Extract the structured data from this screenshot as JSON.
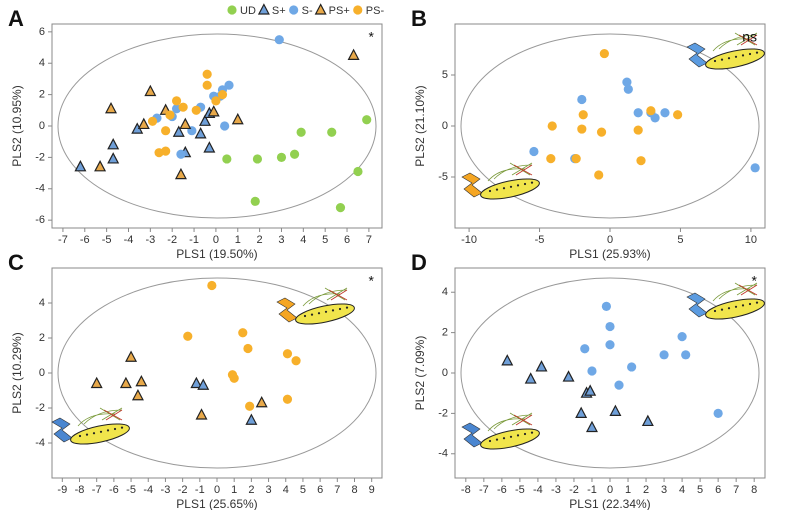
{
  "chart_data": [
    {
      "type": "scatter",
      "panel": "A",
      "xlabel": "PLS1 (19.50%)",
      "ylabel": "PLS2 (10.95%)",
      "annotation": "*",
      "legend": "top",
      "xlim": [
        -7.5,
        7.6
      ],
      "ylim": [
        -6.5,
        6.5
      ],
      "xticks": [
        -7,
        -6,
        -5,
        -4,
        -3,
        -2,
        -1,
        0,
        1,
        2,
        3,
        4,
        5,
        6,
        7
      ],
      "yticks": [
        -6,
        -4,
        -2,
        0,
        2,
        4,
        6
      ],
      "series": [
        {
          "name": "UD",
          "color": "#92d050",
          "marker": "circle",
          "x": [
            6.9,
            3.9,
            5.3,
            3.6,
            3.0,
            1.9,
            0.5,
            6.5,
            1.8,
            5.7
          ],
          "values": [
            0.4,
            -0.4,
            -0.4,
            -1.8,
            -2.0,
            -2.1,
            -2.1,
            -2.9,
            -4.8,
            -5.2
          ]
        },
        {
          "name": "S+",
          "color": "#6f9fd8",
          "marker": "triangle",
          "x": [
            -6.2,
            -4.7,
            -4.7,
            -3.6,
            -1.7,
            -0.7,
            -0.5,
            -0.3,
            -0.3,
            -1.4
          ],
          "values": [
            -2.6,
            -1.2,
            -2.1,
            -0.2,
            -0.4,
            -0.5,
            0.3,
            0.8,
            -1.4,
            -1.7
          ]
        },
        {
          "name": "S-",
          "color": "#6fa8e6",
          "marker": "circle",
          "x": [
            2.9,
            0.6,
            0.3,
            0.2,
            -0.1,
            -0.7,
            -2.7,
            -2.0,
            -1.1,
            -1.6,
            0.4,
            -1.8
          ],
          "values": [
            5.5,
            2.6,
            2.3,
            1.9,
            1.9,
            1.2,
            0.5,
            0.6,
            -0.3,
            -1.8,
            0.0,
            1.1
          ]
        },
        {
          "name": "PS+",
          "color": "#e8a94a",
          "marker": "triangle",
          "x": [
            -4.8,
            -3.0,
            -2.3,
            -3.3,
            -1.4,
            1.0,
            -5.3,
            -1.6,
            6.3,
            -0.1
          ],
          "values": [
            1.1,
            2.2,
            1.0,
            0.1,
            0.1,
            0.4,
            -2.6,
            -3.1,
            4.5,
            0.9
          ]
        },
        {
          "name": "PS-",
          "color": "#f7b02b",
          "marker": "circle",
          "x": [
            -0.4,
            -0.4,
            0.0,
            -0.9,
            -1.8,
            -1.5,
            -2.9,
            -2.3,
            -2.6,
            -2.3,
            -2.1,
            0.3
          ],
          "values": [
            3.3,
            2.6,
            1.6,
            1.0,
            1.6,
            1.2,
            0.3,
            -0.3,
            -1.7,
            -1.6,
            0.7,
            2.0
          ]
        }
      ]
    },
    {
      "type": "scatter",
      "panel": "B",
      "xlabel": "PLS1 (25.93%)",
      "ylabel": "PLS2 (21.10%)",
      "annotation": "ns",
      "xlim": [
        -11,
        11
      ],
      "ylim": [
        -10,
        10
      ],
      "xticks": [
        -10,
        -5,
        0,
        5,
        10
      ],
      "yticks": [
        -5,
        0,
        5
      ],
      "series": [
        {
          "color": "#6fa8e6",
          "marker": "circle",
          "x": [
            -5.4,
            -2.0,
            -2.5,
            1.2,
            1.3,
            2.0,
            2.9,
            3.9,
            3.2,
            10.3
          ],
          "values": [
            -2.5,
            2.6,
            -3.2,
            4.3,
            3.6,
            1.3,
            1.3,
            1.3,
            0.8,
            -4.1
          ]
        },
        {
          "color": "#f7b02b",
          "marker": "circle",
          "x": [
            -0.4,
            -4.1,
            -1.9,
            -2.0,
            -2.4,
            -4.2,
            -0.6,
            -0.8,
            2.0,
            2.2,
            2.9,
            4.8
          ],
          "values": [
            7.1,
            0.0,
            1.1,
            -0.3,
            -3.2,
            -3.2,
            -0.6,
            -4.8,
            -0.4,
            -3.4,
            1.5,
            1.1
          ]
        }
      ]
    },
    {
      "type": "scatter",
      "panel": "C",
      "xlabel": "PLS1 (25.65%)",
      "ylabel": "PLS2 (10.29%)",
      "annotation": "*",
      "xlim": [
        -9.6,
        9.6
      ],
      "ylim": [
        -6,
        6
      ],
      "xticks": [
        -9,
        -8,
        -7,
        -6,
        -5,
        -4,
        -3,
        -2,
        -1,
        0,
        1,
        2,
        3,
        4,
        5,
        6,
        7,
        8,
        9
      ],
      "yticks": [
        -4,
        -2,
        0,
        2,
        4
      ],
      "series": [
        {
          "color": "#f7b02b",
          "marker": "circle",
          "x": [
            -0.3,
            -1.7,
            1.5,
            1.8,
            4.1,
            4.6,
            0.9,
            1.0,
            1.9,
            4.1
          ],
          "values": [
            5.0,
            2.1,
            2.3,
            1.4,
            1.1,
            0.7,
            -0.1,
            -0.3,
            -1.9,
            -1.5
          ]
        },
        {
          "color": "#e8a94a",
          "marker": "triangle",
          "x": [
            -7.0,
            -5.0,
            -5.3,
            -4.6,
            -4.4,
            -0.9,
            2.6
          ],
          "values": [
            -0.6,
            0.9,
            -0.6,
            -1.3,
            -0.5,
            -2.4,
            -1.7
          ]
        },
        {
          "color": "#6f9fd8",
          "marker": "triangle",
          "x": [
            -1.2,
            -0.8,
            2.0
          ],
          "values": [
            -0.6,
            -0.7,
            -2.7
          ]
        }
      ]
    },
    {
      "type": "scatter",
      "panel": "D",
      "xlabel": "PLS1 (22.34%)",
      "ylabel": "PLS2 (7.09%)",
      "annotation": "*",
      "xlim": [
        -8.6,
        8.6
      ],
      "ylim": [
        -5.2,
        5.2
      ],
      "xticks": [
        -8,
        -7,
        -6,
        -5,
        -4,
        -3,
        -2,
        -1,
        0,
        1,
        2,
        3,
        4,
        5,
        6,
        7,
        8
      ],
      "yticks": [
        -4,
        -2,
        0,
        2,
        4
      ],
      "series": [
        {
          "color": "#6fa8e6",
          "marker": "circle",
          "x": [
            -0.2,
            0.0,
            0.0,
            -1.4,
            -1.0,
            1.2,
            0.5,
            3.0,
            4.0,
            4.2,
            6.0
          ],
          "values": [
            3.3,
            2.3,
            1.4,
            1.2,
            0.1,
            0.3,
            -0.6,
            0.9,
            1.8,
            0.9,
            -2.0
          ]
        },
        {
          "color": "#6f9fd8",
          "marker": "triangle",
          "x": [
            -5.7,
            -4.4,
            -3.8,
            -2.3,
            -1.6,
            -1.3,
            -1.1,
            -1.0,
            0.3,
            2.1
          ],
          "values": [
            0.6,
            -0.3,
            0.3,
            -0.2,
            -2.0,
            -1.0,
            -0.9,
            -2.7,
            -1.9,
            -2.4
          ]
        }
      ]
    }
  ]
}
